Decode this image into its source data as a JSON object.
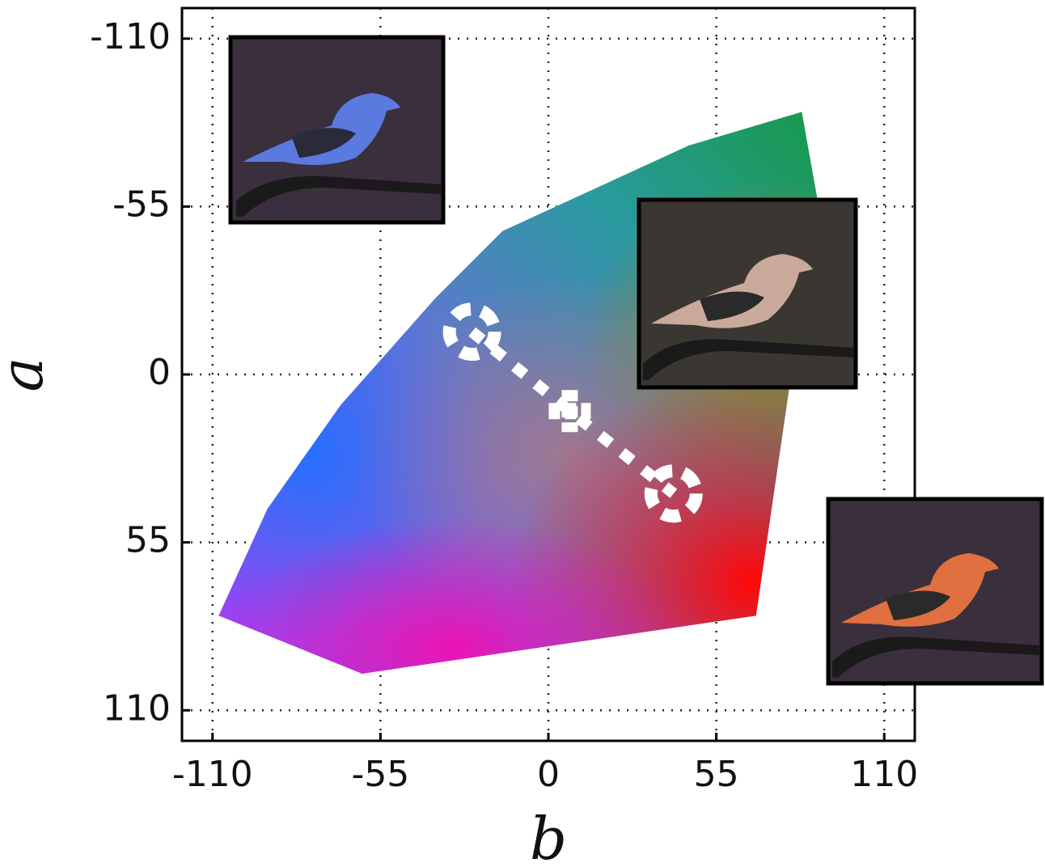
{
  "chart_data": {
    "type": "line",
    "xlabel": "b",
    "ylabel": "a",
    "xlim": [
      -120,
      120
    ],
    "ylim": [
      -120,
      120
    ],
    "yinvert": true,
    "xticks": [
      -110,
      -55,
      0,
      55,
      110
    ],
    "yticks": [
      -110,
      -55,
      0,
      55,
      110
    ],
    "grid": true,
    "gamut": {
      "b": [
        -108,
        -61,
        68,
        88,
        83,
        46,
        -15,
        -37,
        -68,
        -92
      ],
      "a": [
        79,
        98,
        79,
        -58,
        -86,
        -75,
        -47,
        -25,
        10,
        44
      ]
    },
    "series": [
      {
        "color": "#ffffff",
        "markers": [
          "o",
          "P",
          "o"
        ],
        "x": [
          -25,
          7,
          41
        ],
        "values": [
          -14,
          12,
          39
        ]
      }
    ]
  }
}
